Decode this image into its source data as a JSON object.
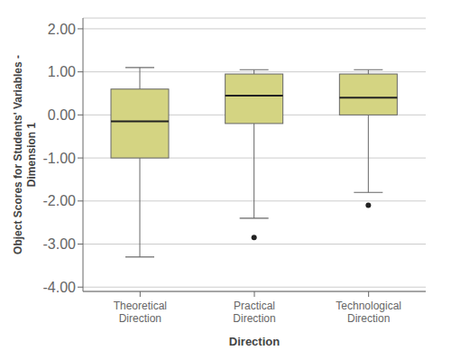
{
  "chart_data": {
    "type": "box",
    "xlabel": "Direction",
    "ylabel": "Object Scores for Students' Variables -\nDimension 1",
    "categories": [
      "Theoretical\nDirection",
      "Practical\nDirection",
      "Technological\nDirection"
    ],
    "boxes": [
      {
        "q1": -1.0,
        "median": -0.15,
        "q3": 0.6,
        "whislo": -3.3,
        "whishi": 1.1,
        "fliers": []
      },
      {
        "q1": -0.2,
        "median": 0.45,
        "q3": 0.95,
        "whislo": -2.4,
        "whishi": 1.05,
        "fliers": [
          -2.85
        ]
      },
      {
        "q1": 0.0,
        "median": 0.4,
        "q3": 0.95,
        "whislo": -1.8,
        "whishi": 1.05,
        "fliers": [
          -2.1
        ]
      }
    ],
    "color": "#d4d482",
    "ylim": [
      -4.1,
      2.25
    ],
    "yticks": [
      {
        "value": -4.0,
        "label": "-4.00"
      },
      {
        "value": -3.0,
        "label": "-3.00"
      },
      {
        "value": -2.0,
        "label": "-2.00"
      },
      {
        "value": -1.0,
        "label": "-1.00"
      },
      {
        "value": 0.0,
        "label": "0.00"
      },
      {
        "value": 1.0,
        "label": "1.00"
      },
      {
        "value": 2.0,
        "label": "2.00"
      }
    ],
    "grid": true
  }
}
